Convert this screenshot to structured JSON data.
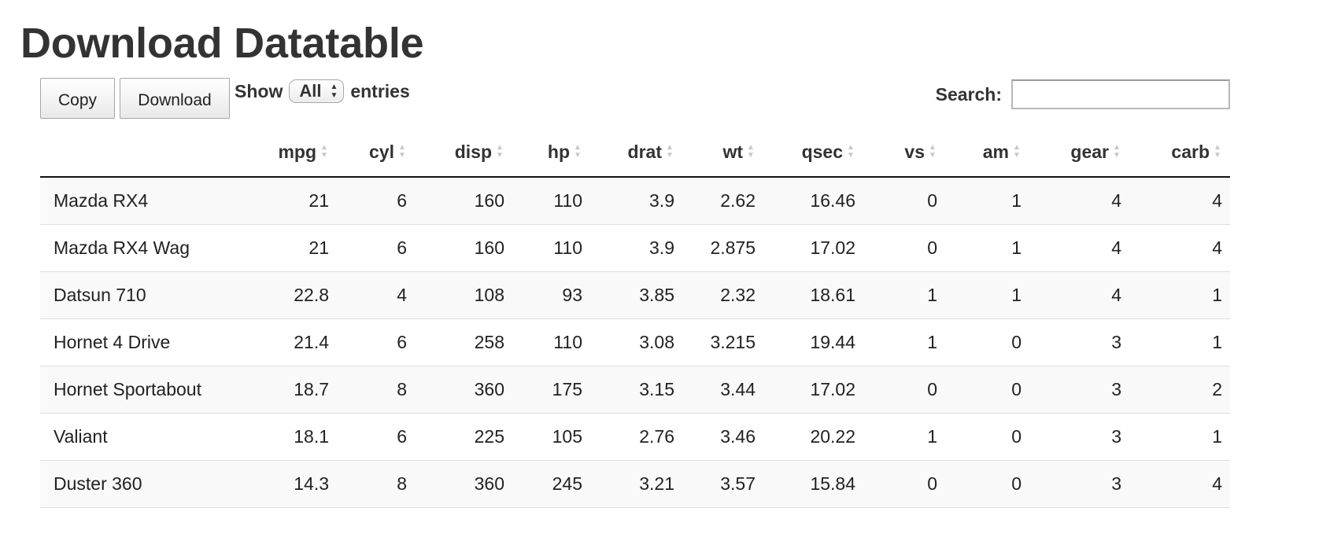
{
  "page": {
    "title": "Download Datatable"
  },
  "toolbar": {
    "copy_label": "Copy",
    "download_label": "Download",
    "show_label": "Show",
    "length_value": "All",
    "entries_label": "entries",
    "search_label": "Search:",
    "search_value": ""
  },
  "table": {
    "columns": [
      "",
      "mpg",
      "cyl",
      "disp",
      "hp",
      "drat",
      "wt",
      "qsec",
      "vs",
      "am",
      "gear",
      "carb"
    ],
    "rows": [
      [
        "Mazda RX4",
        "21",
        "6",
        "160",
        "110",
        "3.9",
        "2.62",
        "16.46",
        "0",
        "1",
        "4",
        "4"
      ],
      [
        "Mazda RX4 Wag",
        "21",
        "6",
        "160",
        "110",
        "3.9",
        "2.875",
        "17.02",
        "0",
        "1",
        "4",
        "4"
      ],
      [
        "Datsun 710",
        "22.8",
        "4",
        "108",
        "93",
        "3.85",
        "2.32",
        "18.61",
        "1",
        "1",
        "4",
        "1"
      ],
      [
        "Hornet 4 Drive",
        "21.4",
        "6",
        "258",
        "110",
        "3.08",
        "3.215",
        "19.44",
        "1",
        "0",
        "3",
        "1"
      ],
      [
        "Hornet Sportabout",
        "18.7",
        "8",
        "360",
        "175",
        "3.15",
        "3.44",
        "17.02",
        "0",
        "0",
        "3",
        "2"
      ],
      [
        "Valiant",
        "18.1",
        "6",
        "225",
        "105",
        "2.76",
        "3.46",
        "20.22",
        "1",
        "0",
        "3",
        "1"
      ],
      [
        "Duster 360",
        "14.3",
        "8",
        "360",
        "245",
        "3.21",
        "3.57",
        "15.84",
        "0",
        "0",
        "3",
        "4"
      ]
    ]
  },
  "icons": {
    "sort": "sort-both-icon",
    "select_arrows": "updown-arrows-icon"
  }
}
